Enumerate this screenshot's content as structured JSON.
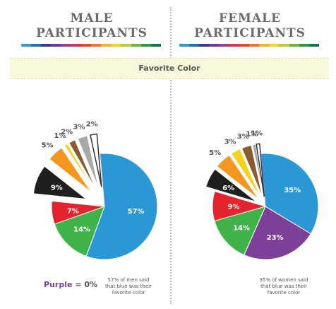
{
  "headings": {
    "male": [
      "MALE",
      "PARTICIPANTS"
    ],
    "female": [
      "FEMALE",
      "PARTICIPANTS"
    ]
  },
  "band_label": "Favorite Color",
  "stripe_colors": [
    "#2a9fd6",
    "#1c6fb5",
    "#3a3a8c",
    "#6b3a99",
    "#a23a8f",
    "#d8335a",
    "#e8442c",
    "#f0772a",
    "#f8b229",
    "#f6d12a",
    "#b9cf33",
    "#6ab93e",
    "#2e9a48",
    "#0f7a47"
  ],
  "notes": {
    "purple_word": "Purple",
    "purple_value": " = 0%",
    "male_caption": [
      "57% of men said",
      "that blue was their",
      "favorite color"
    ],
    "female_caption": [
      "35% of women said",
      "that blue was their",
      "favorite color"
    ]
  },
  "chart_data": [
    {
      "type": "pie",
      "title": "MALE PARTICIPANTS",
      "legend_title": "Favorite Color",
      "slices": [
        {
          "label": "Blue",
          "value": 57,
          "text": "57%",
          "color": "#2b97d4",
          "exploded": false
        },
        {
          "label": "Green",
          "value": 14,
          "text": "14%",
          "color": "#3fb24a",
          "exploded": false
        },
        {
          "label": "Red",
          "value": 7,
          "text": "7%",
          "color": "#e5232e",
          "exploded": false
        },
        {
          "label": "Black",
          "value": 9,
          "text": "9%",
          "color": "#1f1f1f",
          "exploded": true
        },
        {
          "label": "Orange",
          "value": 5,
          "text": "5%",
          "color": "#f5961e",
          "exploded": true
        },
        {
          "label": "Yellow",
          "value": 1,
          "text": "1%",
          "color": "#f7d11c",
          "exploded": true
        },
        {
          "label": "Brown",
          "value": 2,
          "text": "2%",
          "color": "#8b5a2e",
          "exploded": true
        },
        {
          "label": "Gray",
          "value": 3,
          "text": "3%",
          "color": "#a9a9a9",
          "exploded": true
        },
        {
          "label": "White",
          "value": 2,
          "text": "2%",
          "color": "#ffffff",
          "exploded": true
        }
      ]
    },
    {
      "type": "pie",
      "title": "FEMALE PARTICIPANTS",
      "legend_title": "Favorite Color",
      "slices": [
        {
          "label": "Blue",
          "value": 35,
          "text": "35%",
          "color": "#2b97d4",
          "exploded": false
        },
        {
          "label": "Purple",
          "value": 23,
          "text": "23%",
          "color": "#7d3f98",
          "exploded": false
        },
        {
          "label": "Green",
          "value": 14,
          "text": "14%",
          "color": "#3fb24a",
          "exploded": false
        },
        {
          "label": "Red",
          "value": 9,
          "text": "9%",
          "color": "#e5232e",
          "exploded": false
        },
        {
          "label": "Black",
          "value": 6,
          "text": "6%",
          "color": "#1f1f1f",
          "exploded": true
        },
        {
          "label": "Orange",
          "value": 5,
          "text": "5%",
          "color": "#f5961e",
          "exploded": true
        },
        {
          "label": "Yellow",
          "value": 3,
          "text": "3%",
          "color": "#f7d11c",
          "exploded": true
        },
        {
          "label": "Brown",
          "value": 3,
          "text": "3%",
          "color": "#8b5a2e",
          "exploded": true
        },
        {
          "label": "Gray",
          "value": 1,
          "text": "1%",
          "color": "#a9a9a9",
          "exploded": true
        },
        {
          "label": "White",
          "value": 1,
          "text": "1%",
          "color": "#ffffff",
          "exploded": true
        }
      ]
    }
  ]
}
